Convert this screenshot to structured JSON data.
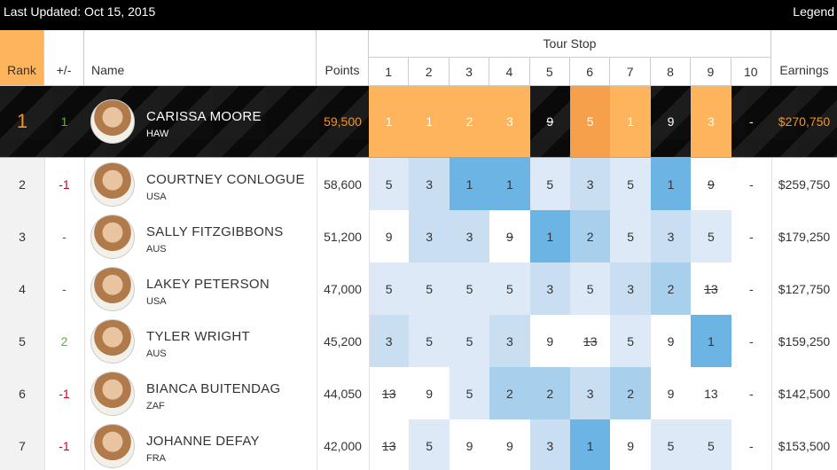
{
  "header": {
    "last_updated": "Last Updated: Oct 15, 2015",
    "legend": "Legend"
  },
  "table": {
    "columns": [
      "Rank",
      "+/-",
      "Name",
      "Points"
    ],
    "tour_stop": "Tour Stop",
    "stops": [
      "1",
      "2",
      "3",
      "4",
      "5",
      "6",
      "7",
      "8",
      "9",
      "10"
    ],
    "earnings": "Earnings",
    "rows": [
      {
        "rank": 1,
        "change": 1,
        "name": "CARISSA MOORE",
        "country": "HAW",
        "points": "59,500",
        "results": [
          1,
          1,
          2,
          3,
          9,
          5,
          1,
          9,
          3,
          "-"
        ],
        "dropped": 4,
        "earnings": "$270,750"
      },
      {
        "rank": 2,
        "change": -1,
        "name": "COURTNEY CONLOGUE",
        "country": "USA",
        "points": "58,600",
        "results": [
          5,
          3,
          1,
          1,
          5,
          3,
          5,
          1,
          9,
          "-"
        ],
        "dropped": 8,
        "earnings": "$259,750"
      },
      {
        "rank": 3,
        "change": "-",
        "name": "SALLY FITZGIBBONS",
        "country": "AUS",
        "points": "51,200",
        "results": [
          9,
          3,
          3,
          9,
          1,
          2,
          5,
          3,
          5,
          "-"
        ],
        "dropped": 3,
        "earnings": "$179,250"
      },
      {
        "rank": 4,
        "change": "-",
        "name": "LAKEY PETERSON",
        "country": "USA",
        "points": "47,000",
        "results": [
          5,
          5,
          5,
          5,
          3,
          5,
          3,
          2,
          13,
          "-"
        ],
        "dropped": 8,
        "earnings": "$127,750"
      },
      {
        "rank": 5,
        "change": 2,
        "name": "TYLER WRIGHT",
        "country": "AUS",
        "points": "45,200",
        "results": [
          3,
          5,
          5,
          3,
          9,
          13,
          5,
          9,
          1,
          "-"
        ],
        "dropped": 5,
        "earnings": "$159,250"
      },
      {
        "rank": 6,
        "change": -1,
        "name": "BIANCA BUITENDAG",
        "country": "ZAF",
        "points": "44,050",
        "results": [
          13,
          9,
          5,
          2,
          2,
          3,
          2,
          9,
          13,
          "-"
        ],
        "dropped": 0,
        "earnings": "$142,500"
      },
      {
        "rank": 7,
        "change": -1,
        "name": "JOHANNE DEFAY",
        "country": "FRA",
        "points": "42,000",
        "results": [
          13,
          5,
          9,
          9,
          3,
          1,
          9,
          5,
          5,
          "-"
        ],
        "dropped": 0,
        "earnings": "$153,500"
      }
    ]
  }
}
